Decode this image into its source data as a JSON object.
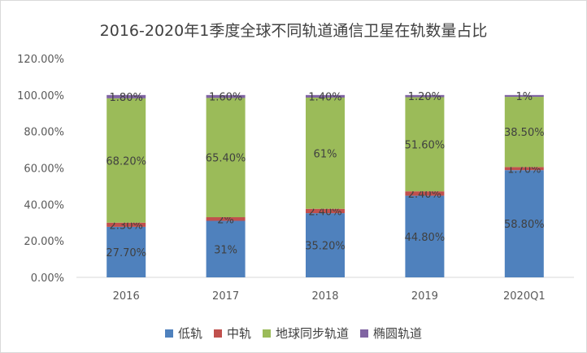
{
  "chart_data": {
    "type": "bar",
    "stacked": true,
    "title": "2016-2020年1季度全球不同轨道通信卫星在轨数量占比",
    "categories": [
      "2016",
      "2017",
      "2018",
      "2019",
      "2020Q1"
    ],
    "ylim": [
      0,
      120
    ],
    "ytick_labels": [
      "0.00%",
      "20.00%",
      "40.00%",
      "60.00%",
      "80.00%",
      "100.00%",
      "120.00%"
    ],
    "grid": false,
    "legend_position": "bottom",
    "series": [
      {
        "name": "低轨",
        "color": "#4f81bd",
        "values": [
          27.7,
          31,
          35.2,
          44.8,
          58.8
        ],
        "labels": [
          "27.70%",
          "31%",
          "35.20%",
          "44.80%",
          "58.80%"
        ]
      },
      {
        "name": "中轨",
        "color": "#c0504d",
        "values": [
          2.3,
          2,
          2.4,
          2.4,
          1.7
        ],
        "labels": [
          "2.30%",
          "2%",
          "2.40%",
          "2.40%",
          "1.70%"
        ]
      },
      {
        "name": "地球同步轨道",
        "color": "#9bbb59",
        "values": [
          68.2,
          65.4,
          61,
          51.6,
          38.5
        ],
        "labels": [
          "68.20%",
          "65.40%",
          "61%",
          "51.60%",
          "38.50%"
        ]
      },
      {
        "name": "椭圆轨道",
        "color": "#8064a2",
        "values": [
          1.8,
          1.6,
          1.4,
          1.2,
          1
        ],
        "labels": [
          "1.80%",
          "1.60%",
          "1.40%",
          "1.20%",
          "1%"
        ]
      }
    ]
  }
}
